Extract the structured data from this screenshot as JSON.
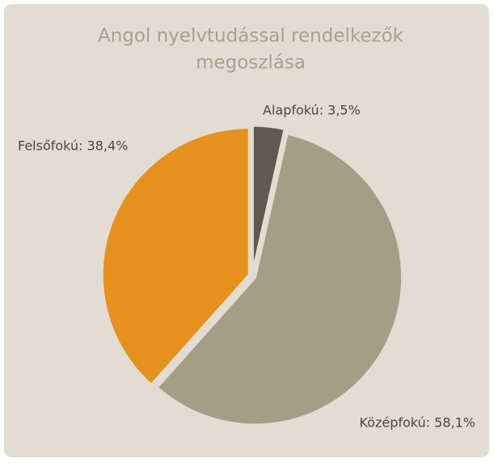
{
  "chart_data": {
    "type": "pie",
    "title_lines": [
      "Angol nyelvtudással rendelkezők",
      "megoszlása"
    ],
    "labels": [
      "Alapfokú: 3,5%",
      "Középfokú: 58,1%",
      "Felsőfokú: 38,4%"
    ],
    "values": [
      3.5,
      58.1,
      38.4
    ],
    "colors": [
      "#5f5a4f",
      "#a59e87",
      "#e6911e"
    ]
  }
}
